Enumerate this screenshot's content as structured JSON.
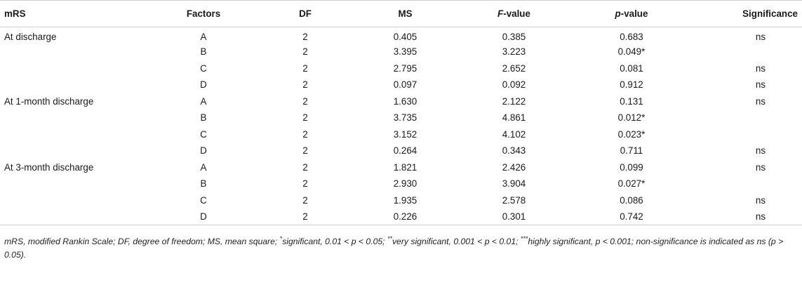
{
  "table": {
    "headers": {
      "mrs": "mRS",
      "factors": "Factors",
      "df": "DF",
      "ms": "MS",
      "f_value_italic": "F",
      "f_value_rest": "-value",
      "p_value_italic": "p",
      "p_value_rest": "-value",
      "significance": "Significance"
    },
    "rows": [
      {
        "mrs": "At discharge",
        "factor": "A",
        "df": "2",
        "ms": "0.405",
        "f": "0.385",
        "p": "0.683",
        "sig": "ns"
      },
      {
        "mrs": "",
        "factor": "B",
        "df": "2",
        "ms": "3.395",
        "f": "3.223",
        "p": "0.049*",
        "sig": ""
      },
      {
        "mrs": "",
        "factor": "C",
        "df": "2",
        "ms": "2.795",
        "f": "2.652",
        "p": "0.081",
        "sig": "ns"
      },
      {
        "mrs": "",
        "factor": "D",
        "df": "2",
        "ms": "0.097",
        "f": "0.092",
        "p": "0.912",
        "sig": "ns"
      },
      {
        "mrs": "At 1-month discharge",
        "factor": "A",
        "df": "2",
        "ms": "1.630",
        "f": "2.122",
        "p": "0.131",
        "sig": "ns"
      },
      {
        "mrs": "",
        "factor": "B",
        "df": "2",
        "ms": "3.735",
        "f": "4.861",
        "p": "0.012*",
        "sig": ""
      },
      {
        "mrs": "",
        "factor": "C",
        "df": "2",
        "ms": "3.152",
        "f": "4.102",
        "p": "0.023*",
        "sig": ""
      },
      {
        "mrs": "",
        "factor": "D",
        "df": "2",
        "ms": "0.264",
        "f": "0.343",
        "p": "0.711",
        "sig": "ns"
      },
      {
        "mrs": "At 3-month discharge",
        "factor": "A",
        "df": "2",
        "ms": "1.821",
        "f": "2.426",
        "p": "0.099",
        "sig": "ns"
      },
      {
        "mrs": "",
        "factor": "B",
        "df": "2",
        "ms": "2.930",
        "f": "3.904",
        "p": "0.027*",
        "sig": ""
      },
      {
        "mrs": "",
        "factor": "C",
        "df": "2",
        "ms": "1.935",
        "f": "2.578",
        "p": "0.086",
        "sig": "ns"
      },
      {
        "mrs": "",
        "factor": "D",
        "df": "2",
        "ms": "0.226",
        "f": "0.301",
        "p": "0.742",
        "sig": "ns"
      }
    ]
  },
  "footnote": {
    "part1": "mRS, modified Rankin Scale; DF, degree of freedom; MS, mean square; ",
    "star1": "*",
    "part2": "significant, 0.01 < p < 0.05; ",
    "star2": "**",
    "part3": "very significant, 0.001 < p < 0.01; ",
    "star3": "***",
    "part4": "highly significant, p < 0.001; non-significance is indicated as ns (p > 0.05)."
  }
}
